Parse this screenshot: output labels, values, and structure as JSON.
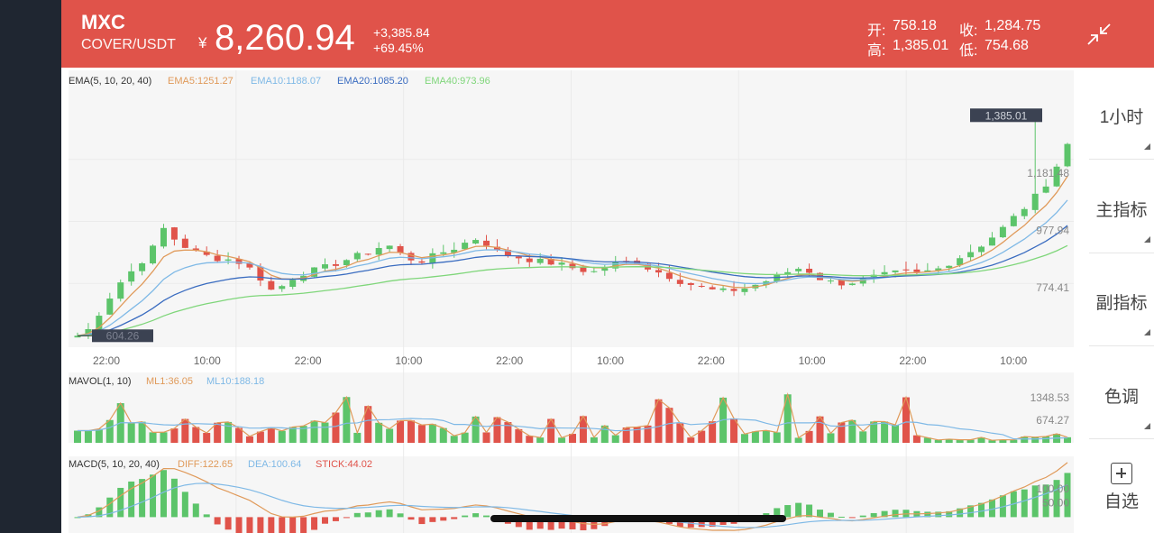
{
  "header": {
    "symbol": "MXC",
    "pair": "COVER/USDT",
    "currency": "¥",
    "price": "8,260.94",
    "change": "+3,385.84",
    "change_pct": "+69.45%",
    "open_label": "开:",
    "open": "758.18",
    "close_label": "收:",
    "close": "1,284.75",
    "high_label": "高:",
    "high": "1,385.01",
    "low_label": "低:",
    "low": "754.68"
  },
  "sidebar": {
    "items": [
      {
        "label": "1小时"
      },
      {
        "label": "主指标"
      },
      {
        "label": "副指标"
      },
      {
        "label": "色调"
      }
    ],
    "watch_label": "自选"
  },
  "colors": {
    "up": "#5cc46a",
    "down": "#e0534a",
    "header_bg": "#e0534a",
    "ema5": "#e09a5a",
    "ema10": "#7fb9e6",
    "ema20": "#3a6cc0",
    "ema40": "#7fd67a"
  },
  "chart_data": {
    "type": "candlestick",
    "main": {
      "indicator": "EMA(5, 10, 20, 40)",
      "ema5": "EMA5:1251.27",
      "ema10": "EMA10:1188.07",
      "ema20": "EMA20:1085.20",
      "ema40": "EMA40:973.96",
      "y_labels": [
        "1,181.48",
        "977.94",
        "774.41"
      ],
      "y_values": [
        1181.48,
        977.94,
        774.41
      ],
      "max_label": "1,385.01",
      "min_label": "604.26",
      "x_labels": [
        "22:00",
        "10:00",
        "22:00",
        "10:00",
        "22:00",
        "10:00",
        "22:00",
        "10:00",
        "22:00",
        "10:00"
      ],
      "ylim": [
        570,
        1450
      ]
    },
    "volume": {
      "indicator": "MAVOL(1, 10)",
      "ml1": "ML1:36.05",
      "ml10": "ML10:188.18",
      "y_labels": [
        "1348.53",
        "674.27"
      ],
      "y_values": [
        1348.53,
        674.27
      ],
      "ylim": [
        0,
        1700
      ]
    },
    "macd": {
      "indicator": "MACD(5, 10, 20, 40)",
      "diff": "DIFF:122.65",
      "dea": "DEA:100.64",
      "stick": "STICK:44.02",
      "y_labels": [
        "100.00",
        "50.00"
      ],
      "y_values": [
        100,
        50
      ],
      "ylim": [
        -40,
        160
      ]
    }
  }
}
